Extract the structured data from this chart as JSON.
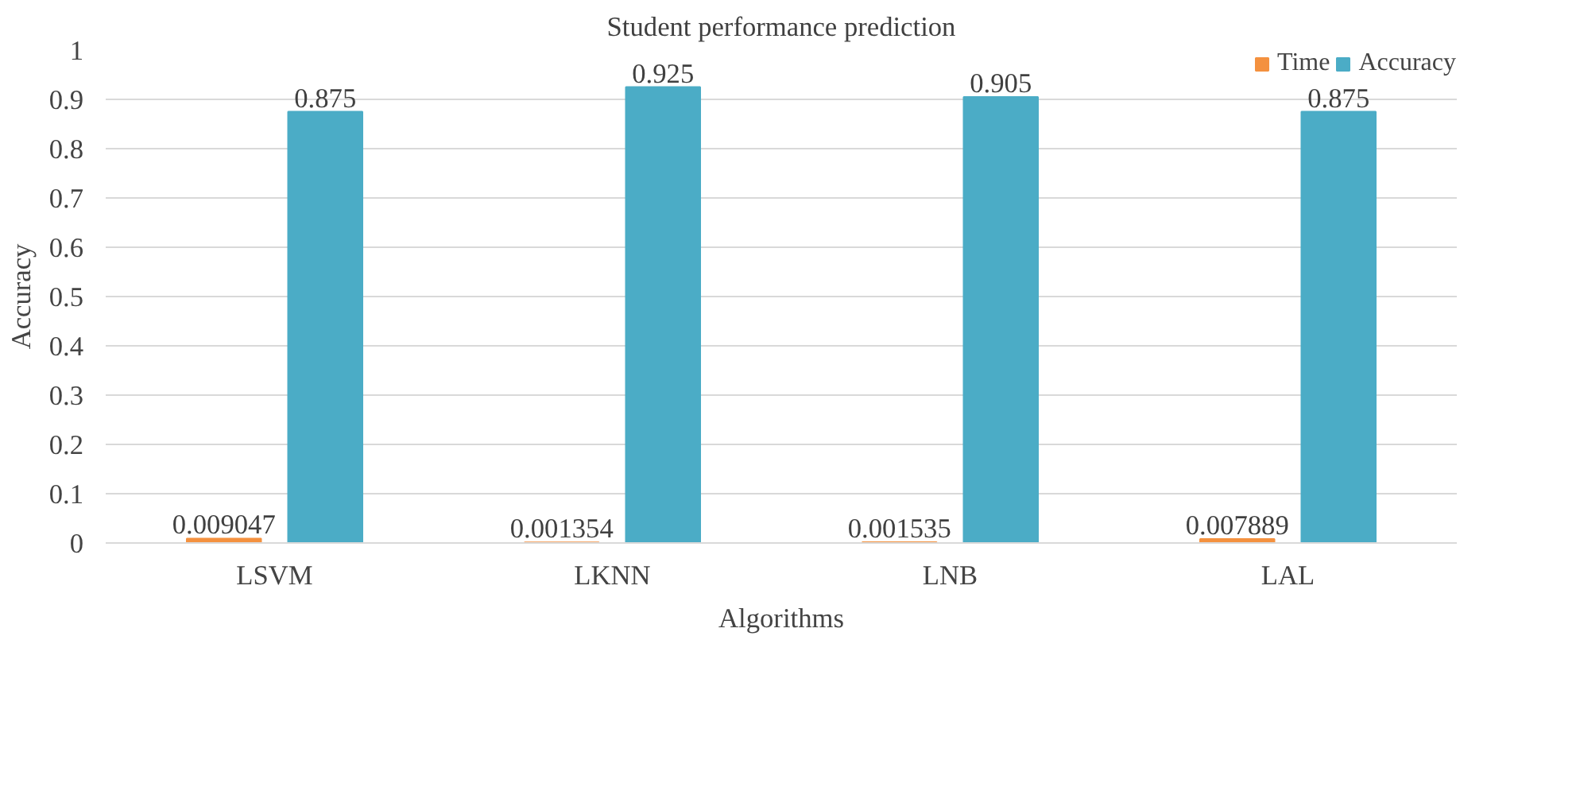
{
  "chart_data": {
    "type": "bar",
    "title": "Student performance prediction",
    "xlabel": "Algorithms",
    "ylabel": "Accuracy",
    "categories": [
      "LSVM",
      "LKNN",
      "LNB",
      "LAL"
    ],
    "series": [
      {
        "name": "Time",
        "color": "#f4913f",
        "values": [
          0.009047,
          0.001354,
          0.001535,
          0.007889
        ]
      },
      {
        "name": "Accuracy",
        "color": "#4bacc6",
        "values": [
          0.875,
          0.925,
          0.905,
          0.875
        ]
      }
    ],
    "ylim": [
      0,
      1
    ],
    "yticks": [
      0,
      0.1,
      0.2,
      0.3,
      0.4,
      0.5,
      0.6,
      0.7,
      0.8,
      0.9,
      1
    ],
    "grid": "y",
    "legend": "top right",
    "data_labels": true
  }
}
